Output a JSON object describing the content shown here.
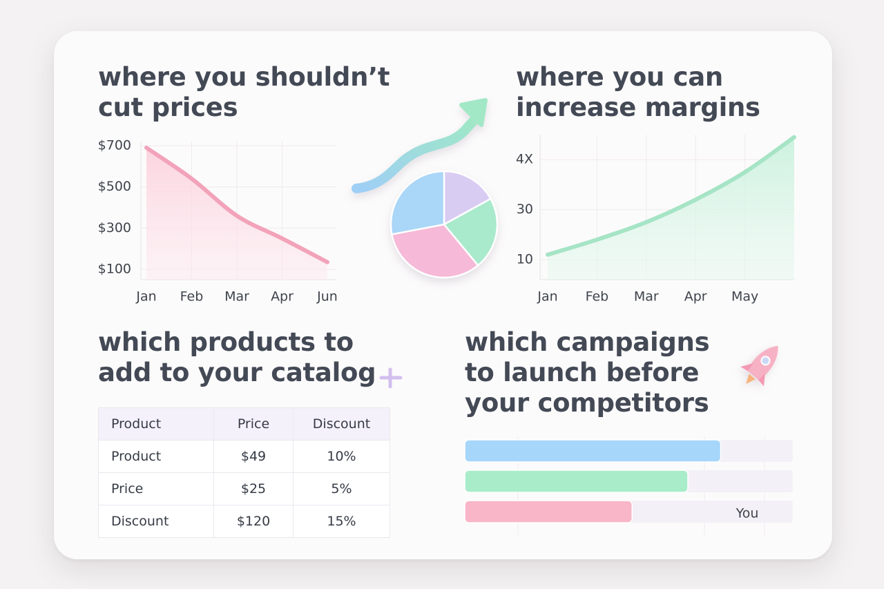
{
  "chart_data": [
    {
      "type": "line",
      "title": [
        "where you shouldn’t",
        "cut prices"
      ],
      "categories": [
        "Jan",
        "Feb",
        "Mar",
        "Apr",
        "Jun"
      ],
      "values": [
        690,
        540,
        360,
        250,
        135
      ],
      "color": "#f2a3ba",
      "fill": "#fbd8e2",
      "ylim": [
        50,
        720
      ],
      "yticks": [
        {
          "value": 700,
          "label": "$700"
        },
        {
          "value": 500,
          "label": "$500"
        },
        {
          "value": 300,
          "label": "$300"
        },
        {
          "value": 100,
          "label": "$100"
        }
      ],
      "grid": true
    },
    {
      "type": "line",
      "title": [
        "where you can",
        "increase margins"
      ],
      "categories": [
        "Jan",
        "Feb",
        "Mar",
        "Apr",
        "May",
        null
      ],
      "values": [
        12,
        18,
        25,
        34,
        45,
        59
      ],
      "color": "#a6e4c6",
      "fill": "#d3f4e4",
      "ylim": [
        2,
        60
      ],
      "yticks": [
        {
          "value": 50,
          "label": "4X"
        },
        30,
        10
      ],
      "grid": true
    },
    {
      "type": "pie",
      "values": [
        17,
        22,
        33,
        28
      ],
      "colors": [
        "#d9ccf3",
        "#a9e9cc",
        "#f6b9d8",
        "#aad6f7"
      ]
    },
    {
      "type": "hbar",
      "title": [
        "which campaigns",
        "to launch before",
        "your competitors"
      ],
      "values": [
        78,
        68,
        51
      ],
      "colors": [
        "#a6d6fa",
        "#a9ecca",
        "#f8b6c8"
      ],
      "xlim": [
        0,
        100
      ],
      "annotation": "You"
    }
  ],
  "table": {
    "title": [
      "which products to",
      "add to your catalog"
    ],
    "header": [
      "Product",
      "Price",
      "Discount"
    ],
    "rows": [
      [
        "Product",
        "$49",
        "10%"
      ],
      [
        "Price",
        "$25",
        "5%"
      ],
      [
        "Discount",
        "$120",
        "15%"
      ]
    ]
  }
}
